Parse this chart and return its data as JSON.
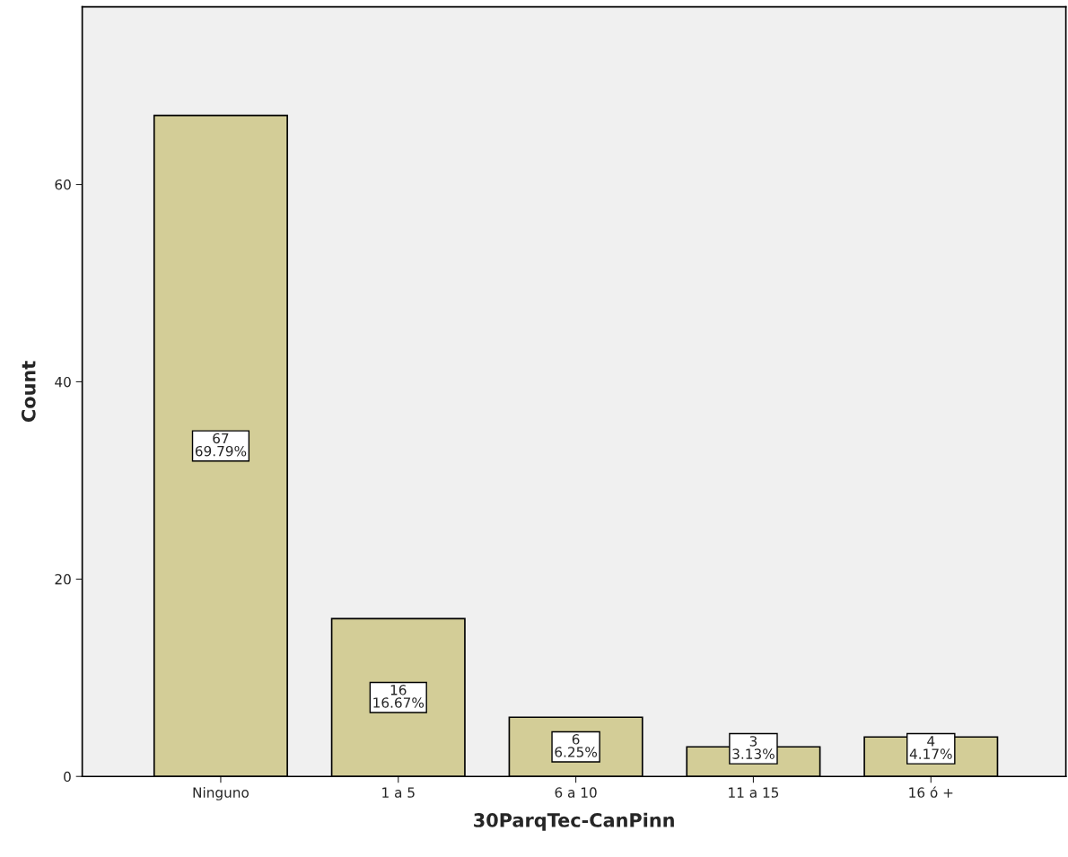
{
  "chart_data": {
    "type": "bar",
    "xlabel": "30ParqTec-CanPinn",
    "ylabel": "Count",
    "categories": [
      "Ninguno",
      "1 a 5",
      "6 a 10",
      "11 a 15",
      "16 ó +"
    ],
    "values": [
      67,
      16,
      6,
      3,
      4
    ],
    "value_labels": [
      "67\n69.79%",
      "16\n16.67%",
      "6\n6.25%",
      "3\n3.13%",
      "4\n4.17%"
    ],
    "color": "#d3cd97",
    "ylim": [
      0,
      78
    ],
    "yticks": [
      0,
      20,
      40,
      60
    ],
    "grid": false,
    "legend": false
  }
}
